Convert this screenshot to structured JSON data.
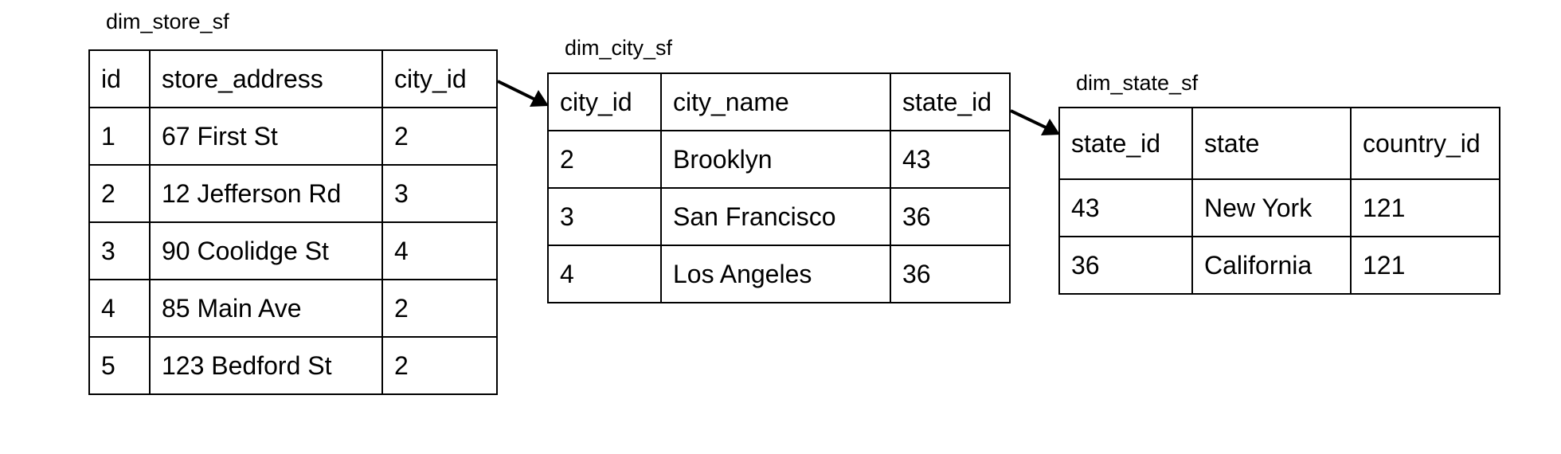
{
  "tables": {
    "store": {
      "title": "dim_store_sf",
      "headers": [
        "id",
        "store_address",
        "city_id"
      ],
      "rows": [
        [
          "1",
          "67 First St",
          "2"
        ],
        [
          "2",
          "12 Jefferson Rd",
          "3"
        ],
        [
          "3",
          "90 Coolidge St",
          "4"
        ],
        [
          "4",
          "85 Main Ave",
          "2"
        ],
        [
          "5",
          "123 Bedford St",
          "2"
        ]
      ]
    },
    "city": {
      "title": "dim_city_sf",
      "headers": [
        "city_id",
        "city_name",
        "state_id"
      ],
      "rows": [
        [
          "2",
          "Brooklyn",
          "43"
        ],
        [
          "3",
          "San Francisco",
          "36"
        ],
        [
          "4",
          "Los Angeles",
          "36"
        ]
      ]
    },
    "state": {
      "title": "dim_state_sf",
      "headers": [
        "state_id",
        "state",
        "country_id"
      ],
      "rows": [
        [
          "43",
          "New York",
          "121"
        ],
        [
          "36",
          "California",
          "121"
        ]
      ]
    }
  }
}
